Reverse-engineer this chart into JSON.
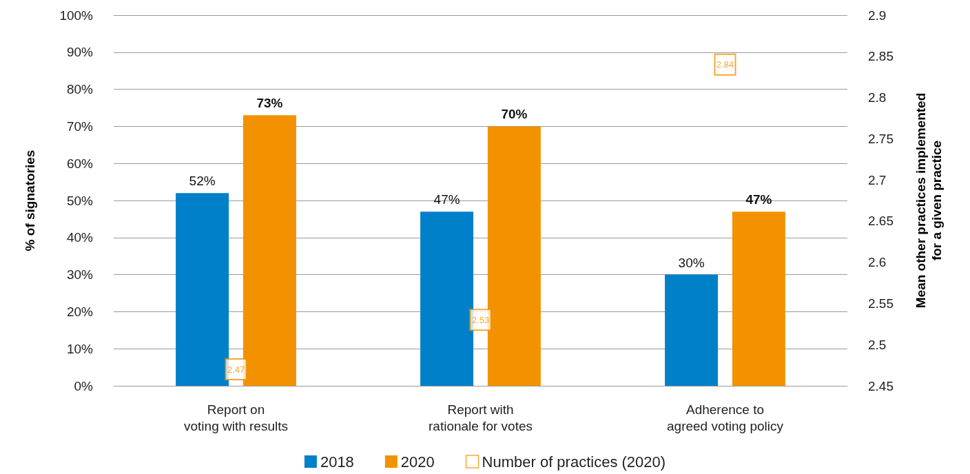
{
  "chart_data": {
    "type": "bar",
    "categories": [
      "Report on\nvoting with results",
      "Report with\nrationale for votes",
      "Adherence to\nagreed voting policy"
    ],
    "series": [
      {
        "name": "2018",
        "color": "#0080c9",
        "values": [
          52,
          47,
          30
        ],
        "value_labels": [
          "52%",
          "47%",
          "30%"
        ]
      },
      {
        "name": "2020",
        "color": "#f39200",
        "values": [
          73,
          70,
          47
        ],
        "value_labels": [
          "73%",
          "70%",
          "47%"
        ]
      },
      {
        "name": "Number of practices (2020)",
        "type": "scatter",
        "axis": "y2",
        "color": "#f39200",
        "values": [
          2.47,
          2.53,
          2.84
        ]
      }
    ],
    "ylabel": "% of signatories",
    "y2label": "Mean other practices implemented\nfor a given practice",
    "ylim": [
      0,
      100
    ],
    "yticks": [
      {
        "value": 0,
        "label": "0%"
      },
      {
        "value": 10,
        "label": "10%"
      },
      {
        "value": 20,
        "label": "20%"
      },
      {
        "value": 30,
        "label": "30%"
      },
      {
        "value": 40,
        "label": "40%"
      },
      {
        "value": 50,
        "label": "50%"
      },
      {
        "value": 60,
        "label": "60%"
      },
      {
        "value": 70,
        "label": "70%"
      },
      {
        "value": 80,
        "label": "80%"
      },
      {
        "value": 90,
        "label": "90%"
      },
      {
        "value": 100,
        "label": "100%"
      }
    ],
    "y2lim": [
      2.45,
      2.9
    ],
    "y2ticks": [
      2.45,
      2.5,
      2.55,
      2.6,
      2.65,
      2.7,
      2.75,
      2.8,
      2.85,
      2.9
    ],
    "grid": "y",
    "legend": "bottom",
    "data_labels": true,
    "marker": "square"
  }
}
